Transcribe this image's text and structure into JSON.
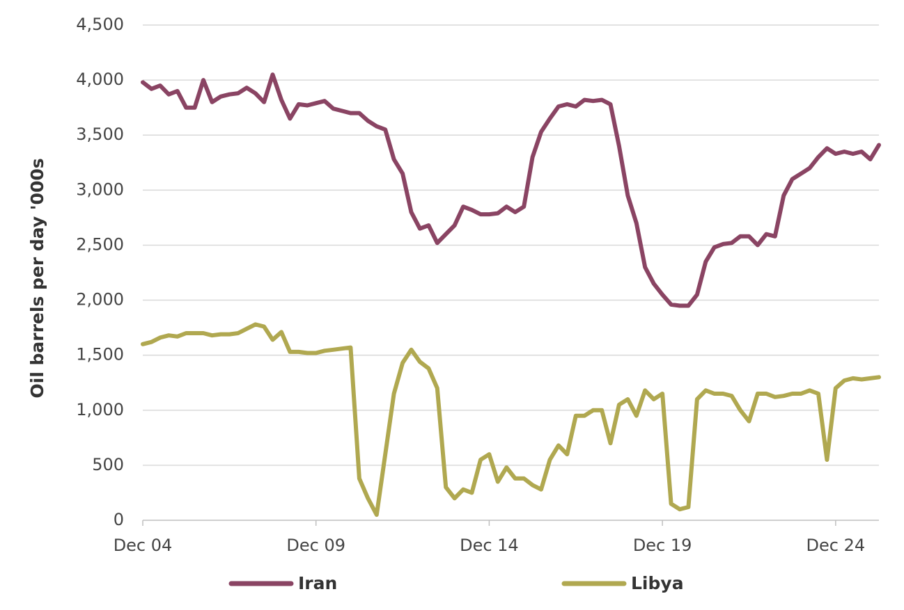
{
  "chart_data": {
    "type": "line",
    "y_label": "Oil barrels per day '000s",
    "categories": [
      "Dec 04",
      null,
      null,
      null,
      null,
      null,
      null,
      null,
      null,
      null,
      null,
      null,
      null,
      null,
      null,
      null,
      null,
      null,
      null,
      null,
      "Dec 09",
      null,
      null,
      null,
      null,
      null,
      null,
      null,
      null,
      null,
      null,
      null,
      null,
      null,
      null,
      null,
      null,
      null,
      null,
      null,
      "Dec 14",
      null,
      null,
      null,
      null,
      null,
      null,
      null,
      null,
      null,
      null,
      null,
      null,
      null,
      null,
      null,
      null,
      null,
      null,
      null,
      "Dec 19",
      null,
      null,
      null,
      null,
      null,
      null,
      null,
      null,
      null,
      null,
      null,
      null,
      null,
      null,
      null,
      null,
      null,
      null,
      null,
      "Dec 24",
      null,
      null,
      null,
      null,
      null
    ],
    "series": [
      {
        "name": "Iran",
        "color": "#8a4463",
        "values": [
          3980,
          3920,
          3950,
          3870,
          3900,
          3750,
          3750,
          4000,
          3800,
          3850,
          3870,
          3880,
          3930,
          3880,
          3800,
          4050,
          3820,
          3650,
          3780,
          3770,
          3790,
          3810,
          3740,
          3720,
          3700,
          3700,
          3630,
          3580,
          3550,
          3280,
          3150,
          2800,
          2650,
          2680,
          2520,
          2600,
          2680,
          2850,
          2820,
          2780,
          2780,
          2790,
          2850,
          2800,
          2850,
          3300,
          3530,
          3650,
          3760,
          3780,
          3760,
          3820,
          3810,
          3820,
          3780,
          3400,
          2950,
          2700,
          2300,
          2150,
          2050,
          1960,
          1950,
          1950,
          2050,
          2350,
          2480,
          2510,
          2520,
          2580,
          2580,
          2500,
          2600,
          2580,
          2950,
          3100,
          3150,
          3200,
          3300,
          3380,
          3330,
          3350,
          3330,
          3350,
          3280,
          3410
        ]
      },
      {
        "name": "Libya",
        "color": "#b0a850",
        "values": [
          1600,
          1620,
          1660,
          1680,
          1670,
          1700,
          1700,
          1700,
          1680,
          1690,
          1690,
          1700,
          1740,
          1780,
          1760,
          1640,
          1710,
          1530,
          1530,
          1520,
          1520,
          1540,
          1550,
          1560,
          1570,
          380,
          200,
          50,
          600,
          1150,
          1430,
          1550,
          1440,
          1380,
          1200,
          300,
          200,
          280,
          250,
          550,
          600,
          350,
          480,
          380,
          380,
          320,
          280,
          550,
          680,
          600,
          950,
          950,
          1000,
          1000,
          700,
          1050,
          1100,
          950,
          1180,
          1100,
          1150,
          150,
          100,
          120,
          1100,
          1180,
          1150,
          1150,
          1130,
          1000,
          900,
          1150,
          1150,
          1120,
          1130,
          1150,
          1150,
          1180,
          1150,
          550,
          1200,
          1270,
          1290,
          1280,
          1290,
          1300
        ]
      }
    ],
    "ylim": [
      0,
      4500
    ],
    "yticks": [
      0,
      500,
      {
        "value": 1000,
        "label": "1,000"
      },
      {
        "value": 1500,
        "label": "1,500"
      },
      {
        "value": 2000,
        "label": "2,000"
      },
      {
        "value": 2500,
        "label": "2,500"
      },
      {
        "value": 3000,
        "label": "3,000"
      },
      {
        "value": 3500,
        "label": "3,500"
      },
      {
        "value": 4000,
        "label": "4,000"
      },
      {
        "value": 4500,
        "label": "4,500"
      }
    ],
    "grid": true,
    "legend": "bottom"
  }
}
